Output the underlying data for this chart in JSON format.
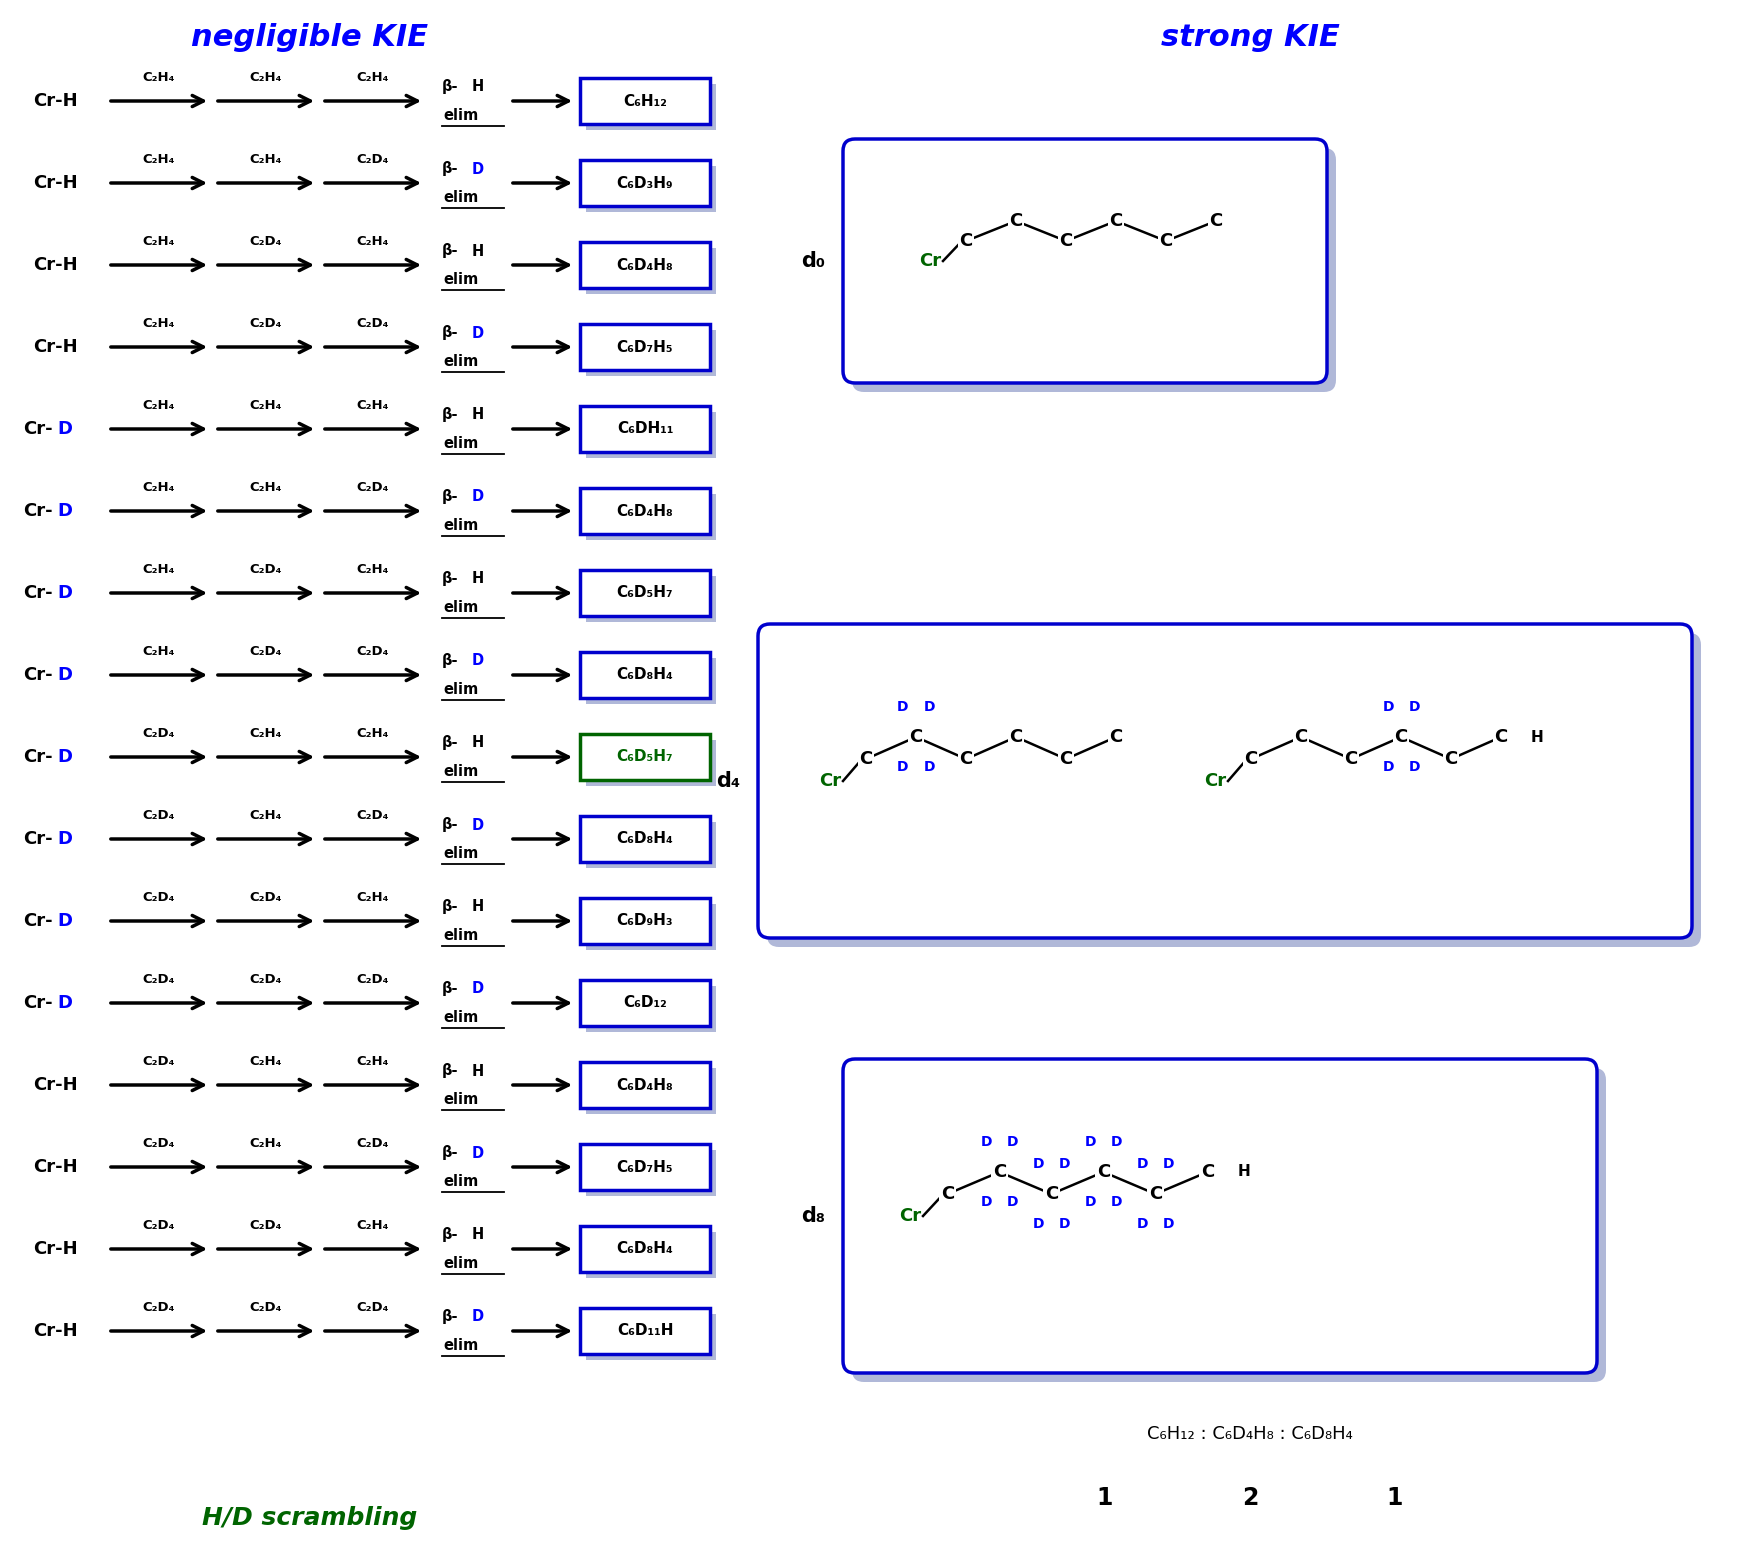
{
  "title_left": "negligible KIE",
  "title_right": "strong KIE",
  "title_color": "#0000FF",
  "footer_left": "H/D scrambling",
  "footer_color": "#006400",
  "ratio_text": "C₆H₁₂ : C₆D₄H₈ : C₆D₈H₄",
  "rows": [
    {
      "start": "Cr-H",
      "start_D": false,
      "ins1": "C₂H₄",
      "ins2": "C₂H₄",
      "ins3": "C₂H₄",
      "elim_hd": "H",
      "product": "C₆H₁₂",
      "highlight": false
    },
    {
      "start": "Cr-H",
      "start_D": false,
      "ins1": "C₂H₄",
      "ins2": "C₂H₄",
      "ins3": "C₂D₄",
      "elim_hd": "D",
      "product": "C₆D₃H₉",
      "highlight": false
    },
    {
      "start": "Cr-H",
      "start_D": false,
      "ins1": "C₂H₄",
      "ins2": "C₂D₄",
      "ins3": "C₂H₄",
      "elim_hd": "H",
      "product": "C₆D₄H₈",
      "highlight": false
    },
    {
      "start": "Cr-H",
      "start_D": false,
      "ins1": "C₂H₄",
      "ins2": "C₂D₄",
      "ins3": "C₂D₄",
      "elim_hd": "D",
      "product": "C₆D₇H₅",
      "highlight": false
    },
    {
      "start": "Cr-D",
      "start_D": true,
      "ins1": "C₂H₄",
      "ins2": "C₂H₄",
      "ins3": "C₂H₄",
      "elim_hd": "H",
      "product": "C₆DH₁₁",
      "highlight": false
    },
    {
      "start": "Cr-D",
      "start_D": true,
      "ins1": "C₂H₄",
      "ins2": "C₂H₄",
      "ins3": "C₂D₄",
      "elim_hd": "D",
      "product": "C₆D₄H₈",
      "highlight": false
    },
    {
      "start": "Cr-D",
      "start_D": true,
      "ins1": "C₂H₄",
      "ins2": "C₂D₄",
      "ins3": "C₂H₄",
      "elim_hd": "H",
      "product": "C₆D₅H₇",
      "highlight": false
    },
    {
      "start": "Cr-D",
      "start_D": true,
      "ins1": "C₂H₄",
      "ins2": "C₂D₄",
      "ins3": "C₂D₄",
      "elim_hd": "D",
      "product": "C₆D₈H₄",
      "highlight": false
    },
    {
      "start": "Cr-D",
      "start_D": true,
      "ins1": "C₂D₄",
      "ins2": "C₂H₄",
      "ins3": "C₂H₄",
      "elim_hd": "H",
      "product": "C₆D₅H₇",
      "highlight": true
    },
    {
      "start": "Cr-D",
      "start_D": true,
      "ins1": "C₂D₄",
      "ins2": "C₂H₄",
      "ins3": "C₂D₄",
      "elim_hd": "D",
      "product": "C₆D₈H₄",
      "highlight": false
    },
    {
      "start": "Cr-D",
      "start_D": true,
      "ins1": "C₂D₄",
      "ins2": "C₂D₄",
      "ins3": "C₂H₄",
      "elim_hd": "H",
      "product": "C₆D₉H₃",
      "highlight": false
    },
    {
      "start": "Cr-D",
      "start_D": true,
      "ins1": "C₂D₄",
      "ins2": "C₂D₄",
      "ins3": "C₂D₄",
      "elim_hd": "D",
      "product": "C₆D₁₂",
      "highlight": false
    },
    {
      "start": "Cr-H",
      "start_D": false,
      "ins1": "C₂D₄",
      "ins2": "C₂H₄",
      "ins3": "C₂H₄",
      "elim_hd": "H",
      "product": "C₆D₄H₈",
      "highlight": false
    },
    {
      "start": "Cr-H",
      "start_D": false,
      "ins1": "C₂D₄",
      "ins2": "C₂H₄",
      "ins3": "C₂D₄",
      "elim_hd": "D",
      "product": "C₆D₇H₅",
      "highlight": false
    },
    {
      "start": "Cr-H",
      "start_D": false,
      "ins1": "C₂D₄",
      "ins2": "C₂D₄",
      "ins3": "C₂H₄",
      "elim_hd": "H",
      "product": "C₆D₈H₄",
      "highlight": false
    },
    {
      "start": "Cr-H",
      "start_D": false,
      "ins1": "C₂D₄",
      "ins2": "C₂D₄",
      "ins3": "C₂D₄",
      "elim_hd": "D",
      "product": "C₆D₁₁H",
      "highlight": false
    }
  ],
  "d0_label": "d₀",
  "d4_label": "d₄",
  "d8_label": "d₈",
  "box_color": "#0000CD",
  "cr_color": "#006400",
  "d_color": "#0000FF",
  "highlight_color": "#006400",
  "shadow_color": "#B0B8D8"
}
